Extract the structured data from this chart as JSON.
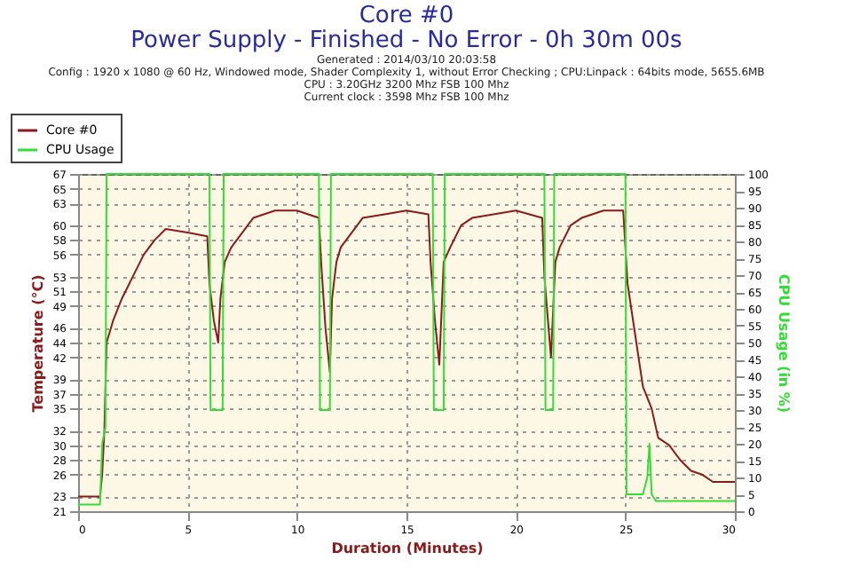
{
  "chart_data": {
    "type": "line",
    "title": "Core #0",
    "subtitle": "Power Supply - Finished - No Error - 0h 30m 00s",
    "annotations": [
      "Generated : 2014/03/10 20:03:58",
      "Config : 1920 x 1080 @ 60 Hz, Windowed mode, Shader Complexity 1, without Error Checking ; CPU:Linpack : 64bits mode, 5655.6MB",
      "CPU : 3.20GHz 3200 Mhz FSB 100 Mhz",
      "Current clock : 3598 Mhz FSB 100 Mhz"
    ],
    "xlabel": "Duration (Minutes)",
    "ylabel": "Temperature (°C)",
    "y2label": "CPU Usage (in %)",
    "xlim": [
      0,
      30
    ],
    "xticks": [
      0,
      5,
      10,
      15,
      20,
      25,
      30
    ],
    "ylim": [
      21,
      67
    ],
    "yticks": [
      21,
      23,
      26,
      28,
      30,
      32,
      35,
      37,
      39,
      42,
      44,
      46,
      49,
      51,
      53,
      56,
      58,
      60,
      63,
      65,
      67
    ],
    "y2lim": [
      0,
      100
    ],
    "y2ticks": [
      0,
      5,
      10,
      15,
      20,
      25,
      30,
      35,
      40,
      45,
      50,
      55,
      60,
      65,
      70,
      75,
      80,
      85,
      90,
      95,
      100
    ],
    "grid": true,
    "legend": "top left",
    "line_style": "solid",
    "series": [
      {
        "name": "Core #0",
        "color": "#8b1a1a",
        "x": [
          0,
          0.5,
          1.0,
          1.1,
          1.2,
          1.3,
          1.6,
          2.0,
          2.5,
          3.0,
          3.5,
          4.0,
          5.0,
          5.9,
          6.0,
          6.2,
          6.4,
          6.5,
          6.7,
          7.0,
          7.5,
          8.0,
          9.0,
          10.0,
          11.0,
          11.1,
          11.3,
          11.5,
          11.6,
          11.8,
          12.0,
          12.5,
          13.0,
          14.0,
          15.0,
          16.0,
          16.1,
          16.3,
          16.5,
          16.7,
          17.0,
          17.5,
          18.0,
          20.0,
          21.2,
          21.3,
          21.6,
          21.8,
          22.0,
          22.5,
          23.0,
          24.0,
          24.9,
          25.1,
          25.4,
          25.8,
          26.2,
          26.5,
          27.0,
          27.5,
          28.0,
          28.5,
          29.0,
          30.0
        ],
        "values": [
          23,
          23,
          23,
          26,
          32,
          44,
          47,
          50,
          53,
          56,
          58,
          59.5,
          59,
          58.5,
          52,
          47,
          44,
          50,
          55,
          57,
          59,
          61,
          62,
          62,
          61,
          55,
          46,
          40,
          50,
          55,
          57,
          59,
          61,
          61.5,
          62,
          61.5,
          55,
          47,
          41,
          55,
          57,
          60,
          61,
          62,
          61,
          53,
          42,
          55,
          57,
          60,
          61,
          62,
          62,
          52,
          46,
          38,
          35,
          31,
          30,
          28,
          26.5,
          26,
          25,
          25
        ]
      },
      {
        "name": "CPU Usage",
        "color": "#33dd33",
        "axis": "y2",
        "x": [
          0,
          1.0,
          1.1,
          1.25,
          1.3,
          6.0,
          6.05,
          6.6,
          6.65,
          11.0,
          11.05,
          11.5,
          11.55,
          16.2,
          16.25,
          16.7,
          16.75,
          21.3,
          21.35,
          21.7,
          21.75,
          25.0,
          25.05,
          25.8,
          26.0,
          26.1,
          26.2,
          26.4,
          30.0
        ],
        "values": [
          2,
          2,
          20,
          25,
          100,
          100,
          30,
          30,
          100,
          100,
          30,
          30,
          100,
          100,
          30,
          30,
          100,
          100,
          30,
          30,
          100,
          100,
          5,
          5,
          10,
          20,
          5,
          3,
          3
        ]
      }
    ]
  }
}
